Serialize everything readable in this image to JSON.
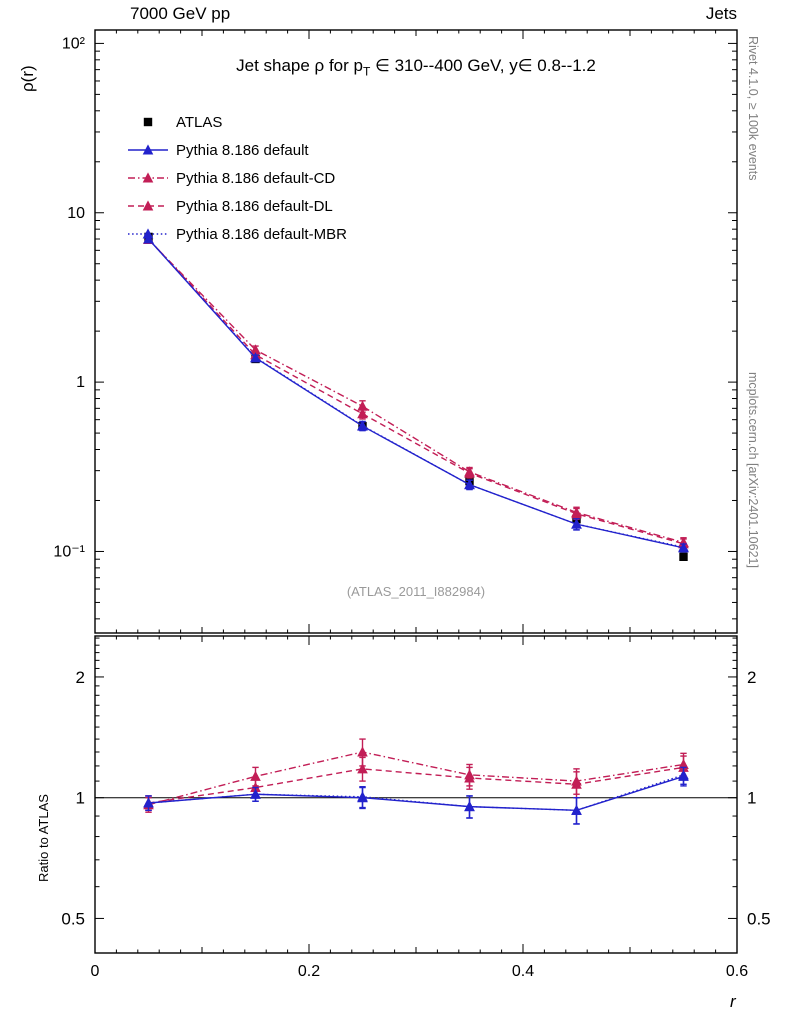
{
  "header": {
    "left": "7000 GeV pp",
    "right": "Jets"
  },
  "title": {
    "pre": "Jet shape ρ for p",
    "sub": "T",
    "post": " ∈ 310--400 GeV, y∈ 0.8--1.2"
  },
  "watermark": "(ATLAS_2011_I882984)",
  "side_texts": {
    "top_right": "Rivet 4.1.0, ≥ 100k events",
    "bottom_right": "mcplots.cern.ch [arXiv:2401.10621]"
  },
  "chart_data": {
    "type": "line",
    "title": "Jet shape ρ for p_T ∈ 310--400 GeV, y ∈ 0.8--1.2",
    "xlabel": "r",
    "ylabel_main": "ρ(r)",
    "ylabel_ratio": "Ratio to ATLAS",
    "log_y": true,
    "legend_position": "top-left",
    "ratio_reference": "ATLAS",
    "xlim": [
      0,
      0.6
    ],
    "ylim_main": [
      0.033,
      120
    ],
    "ylim_ratio": [
      0.41,
      2.53
    ],
    "x": [
      0.05,
      0.15,
      0.25,
      0.35,
      0.45,
      0.55
    ],
    "x_ticks": [
      {
        "v": 0,
        "label": "0"
      },
      {
        "v": 0.2,
        "label": "0.2"
      },
      {
        "v": 0.4,
        "label": "0.4"
      },
      {
        "v": 0.6,
        "label": "0.6"
      }
    ],
    "y_ticks_main": [
      {
        "v": 100,
        "label": "10²"
      },
      {
        "v": 10,
        "label": "10"
      },
      {
        "v": 1,
        "label": "1"
      },
      {
        "v": 0.1,
        "label": "10⁻¹"
      }
    ],
    "y_ticks_ratio": [
      {
        "v": 2,
        "label": "2"
      },
      {
        "v": 1,
        "label": "1"
      },
      {
        "v": 0.5,
        "label": "0.5"
      }
    ],
    "colors": {
      "data": "#000000",
      "pythia_blue": "#2222cc",
      "pythia_crimson": "#c21e56"
    },
    "series": [
      {
        "name": "ATLAS",
        "label": "ATLAS",
        "marker": "square",
        "color": "#000000",
        "values": [
          7.2,
          1.37,
          0.55,
          0.26,
          0.155,
          0.093
        ],
        "err": [
          0.22,
          0.04,
          0.016,
          0.008,
          0.005,
          0.003
        ]
      },
      {
        "name": "default",
        "label": "Pythia 8.186 default",
        "marker": "triangle",
        "color": "#2222cc",
        "line": "solid",
        "values": [
          7.0,
          1.39,
          0.55,
          0.248,
          0.145,
          0.105
        ],
        "ratio": [
          0.97,
          1.02,
          1.0,
          0.95,
          0.93,
          1.13
        ],
        "ratio_err": [
          0.04,
          0.04,
          0.06,
          0.06,
          0.07,
          0.06
        ]
      },
      {
        "name": "default-CD",
        "label": "Pythia 8.186 default-CD",
        "marker": "triangle",
        "color": "#c21e56",
        "line": "dashdot",
        "values": [
          6.95,
          1.55,
          0.72,
          0.295,
          0.17,
          0.113
        ],
        "ratio": [
          0.96,
          1.13,
          1.3,
          1.14,
          1.1,
          1.21
        ],
        "ratio_err": [
          0.04,
          0.06,
          0.1,
          0.07,
          0.08,
          0.08
        ]
      },
      {
        "name": "default-DL",
        "label": "Pythia 8.186 default-DL",
        "marker": "triangle",
        "color": "#c21e56",
        "line": "dash",
        "values": [
          7.0,
          1.45,
          0.65,
          0.29,
          0.167,
          0.111
        ],
        "ratio": [
          0.97,
          1.06,
          1.18,
          1.12,
          1.08,
          1.19
        ],
        "ratio_err": [
          0.04,
          0.05,
          0.08,
          0.07,
          0.08,
          0.08
        ]
      },
      {
        "name": "default-MBR",
        "label": "Pythia 8.186 default-MBR",
        "marker": "triangle",
        "color": "#2222cc",
        "line": "dot",
        "values": [
          7.0,
          1.4,
          0.553,
          0.248,
          0.145,
          0.106
        ],
        "ratio": [
          0.97,
          1.02,
          1.005,
          0.95,
          0.93,
          1.14
        ],
        "ratio_err": [
          0.04,
          0.04,
          0.06,
          0.06,
          0.07,
          0.06
        ]
      }
    ]
  }
}
